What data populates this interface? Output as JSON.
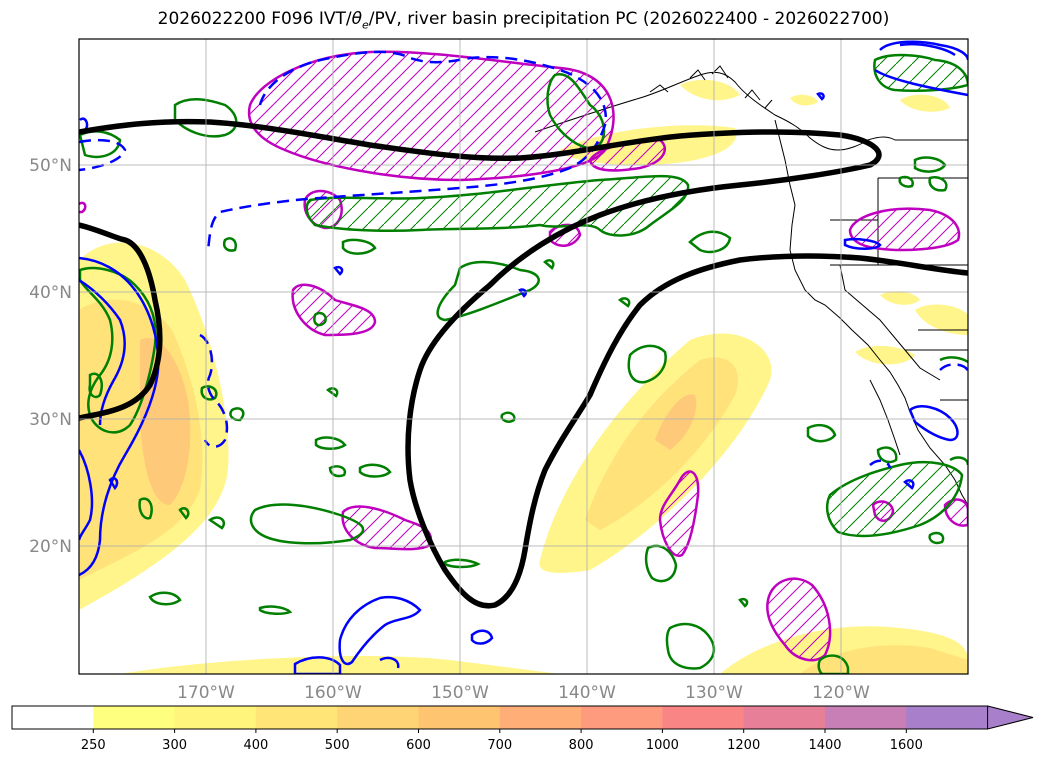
{
  "title": {
    "init": "2026022200 F096 IVT/",
    "theta": "θ",
    "theta_sub": "e",
    "rest": "/PV, river basin precipitation PC (2026022400 - 2026022700)"
  },
  "map": {
    "lat_labels": [
      "50°N",
      "40°N",
      "30°N",
      "20°N"
    ],
    "lon_labels": [
      "170°W",
      "160°W",
      "150°W",
      "140°W",
      "130°W",
      "120°W"
    ]
  },
  "colorbar": {
    "labels": [
      "250",
      "300",
      "400",
      "500",
      "600",
      "700",
      "800",
      "1000",
      "1200",
      "1400",
      "1600"
    ],
    "colors": [
      "#ffffff",
      "#ffff7f",
      "#fff47c",
      "#ffe477",
      "#ffd474",
      "#ffc470",
      "#ffae78",
      "#fe9a7e",
      "#fa8585",
      "#e87f98",
      "#c77fb5",
      "#a77fca"
    ]
  },
  "colors": {
    "ivt_low": "#fff58a",
    "ivt_mid": "#ffe07a",
    "ivt_high": "#ffc476",
    "theta_contour": "#007f00",
    "pv_contour": "#0000ff",
    "pv_hatch": "#bf00bf",
    "jet_line": "#000000"
  }
}
